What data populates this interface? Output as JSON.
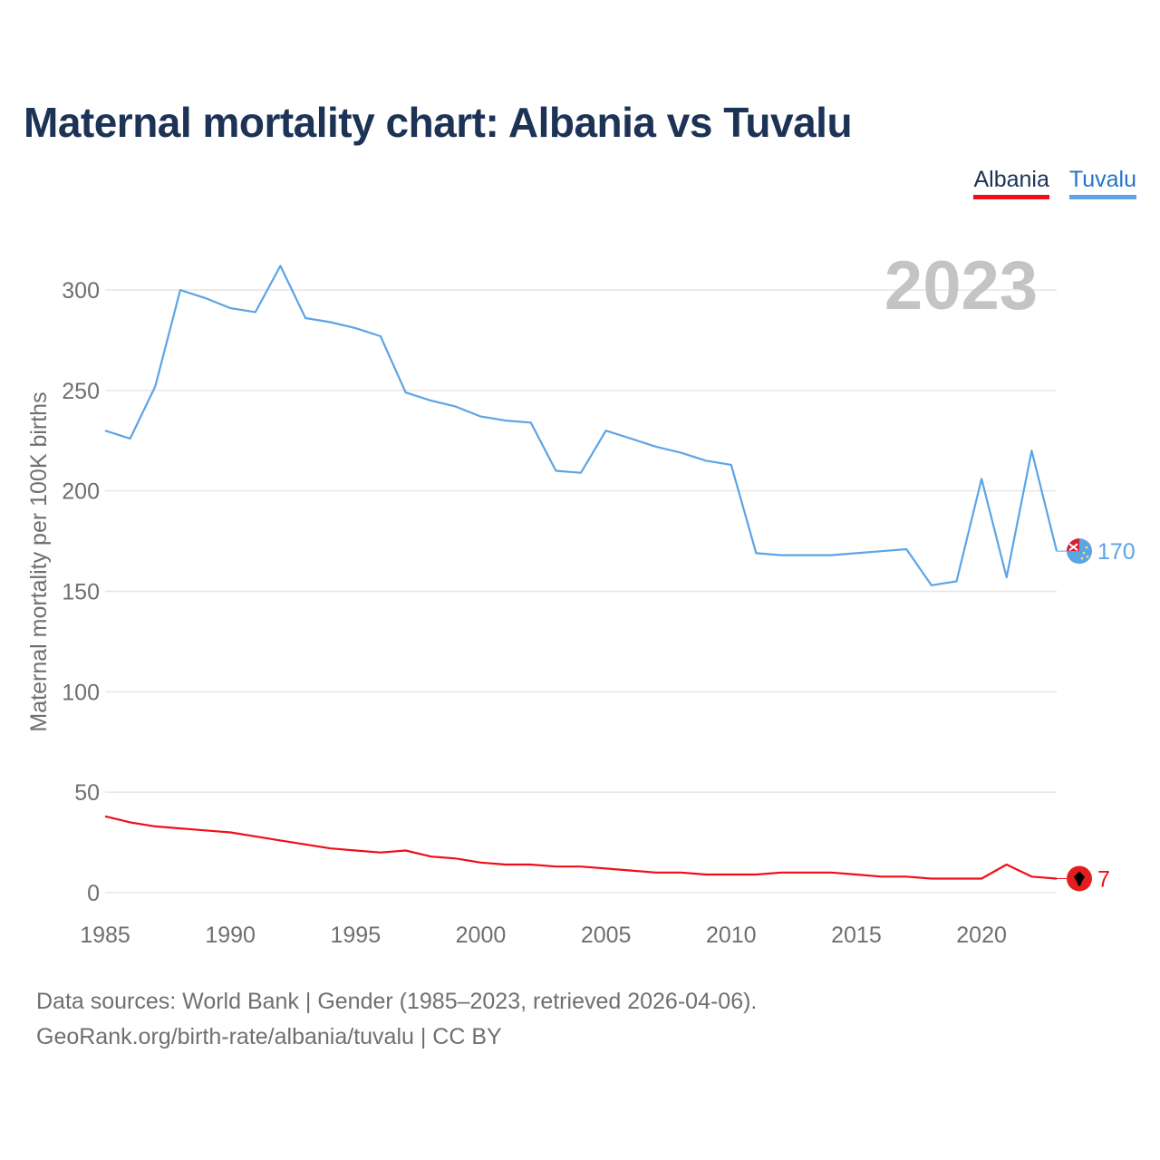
{
  "title": "Maternal mortality chart: Albania vs Tuvalu",
  "legend": [
    {
      "label": "Albania",
      "color": "#ef0e17"
    },
    {
      "label": "Tuvalu",
      "color": "#5ba4e6"
    }
  ],
  "year_watermark": "2023",
  "footer": {
    "line1": "Data sources: World Bank | Gender (1985–2023, retrieved 2026-04-06).",
    "line2": "GeoRank.org/birth-rate/albania/tuvalu | CC BY"
  },
  "chart_data": {
    "type": "line",
    "title": "Maternal mortality chart: Albania vs Tuvalu",
    "xlabel": "",
    "ylabel": "Maternal mortality per 100K births",
    "xlim": [
      1985,
      2023
    ],
    "ylim": [
      0,
      320
    ],
    "x_ticks": [
      1985,
      1990,
      1995,
      2000,
      2005,
      2010,
      2015,
      2020
    ],
    "y_ticks": [
      0,
      50,
      100,
      150,
      200,
      250,
      300
    ],
    "grid": true,
    "legend_position": "top-right",
    "x": [
      1985,
      1986,
      1987,
      1988,
      1989,
      1990,
      1991,
      1992,
      1993,
      1994,
      1995,
      1996,
      1997,
      1998,
      1999,
      2000,
      2001,
      2002,
      2003,
      2004,
      2005,
      2006,
      2007,
      2008,
      2009,
      2010,
      2011,
      2012,
      2013,
      2014,
      2015,
      2016,
      2017,
      2018,
      2019,
      2020,
      2021,
      2022,
      2023
    ],
    "series": [
      {
        "name": "Tuvalu",
        "color": "#5ba4e6",
        "end_label": "170",
        "flag_icon": "tuvalu-flag-icon",
        "values": [
          230,
          226,
          252,
          300,
          296,
          291,
          289,
          312,
          286,
          284,
          281,
          277,
          249,
          245,
          242,
          237,
          235,
          234,
          210,
          209,
          230,
          226,
          222,
          219,
          215,
          213,
          169,
          168,
          168,
          168,
          169,
          170,
          171,
          153,
          155,
          206,
          157,
          220,
          170
        ]
      },
      {
        "name": "Albania",
        "color": "#ef0e17",
        "end_label": "7",
        "flag_icon": "albania-flag-icon",
        "values": [
          38,
          35,
          33,
          32,
          31,
          30,
          28,
          26,
          24,
          22,
          21,
          20,
          21,
          18,
          17,
          15,
          14,
          14,
          13,
          13,
          12,
          11,
          10,
          10,
          9,
          9,
          9,
          10,
          10,
          10,
          9,
          8,
          8,
          7,
          7,
          7,
          14,
          8,
          7
        ]
      }
    ]
  }
}
